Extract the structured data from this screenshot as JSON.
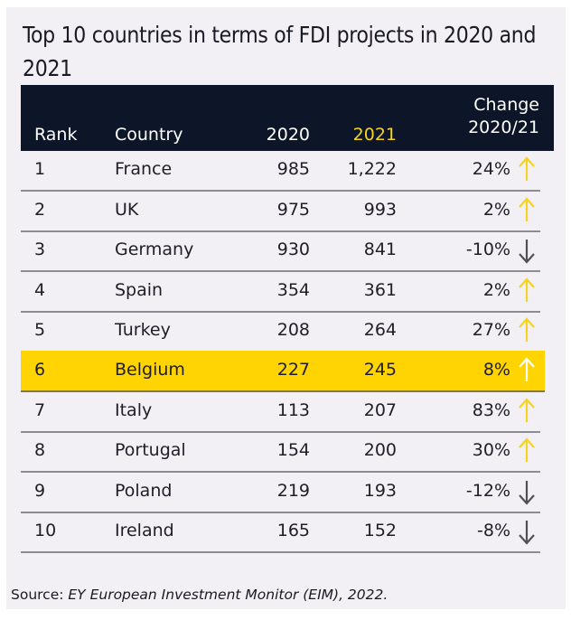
{
  "title": "Top 10 countries in terms of FDI projects in 2020 and 2021",
  "columns": {
    "rank": "Rank",
    "country": "Country",
    "y2020": "2020",
    "y2021": "2021",
    "change_line1": "Change",
    "change_line2": "2020/21"
  },
  "colors": {
    "header_bg": "#0d1628",
    "highlight": "#ffd400",
    "up_arrow": "#f5d31e",
    "down_arrow": "#505058"
  },
  "rows": [
    {
      "rank": "1",
      "country": "France",
      "y2020": "985",
      "y2021": "1,222",
      "change": "24%",
      "direction": "up"
    },
    {
      "rank": "2",
      "country": "UK",
      "y2020": "975",
      "y2021": "993",
      "change": "2%",
      "direction": "up"
    },
    {
      "rank": "3",
      "country": "Germany",
      "y2020": "930",
      "y2021": "841",
      "change": "-10%",
      "direction": "down"
    },
    {
      "rank": "4",
      "country": "Spain",
      "y2020": "354",
      "y2021": "361",
      "change": "2%",
      "direction": "up"
    },
    {
      "rank": "5",
      "country": "Turkey",
      "y2020": "208",
      "y2021": "264",
      "change": "27%",
      "direction": "up"
    },
    {
      "rank": "6",
      "country": "Belgium",
      "y2020": "227",
      "y2021": "245",
      "change": "8%",
      "direction": "up",
      "highlighted": true
    },
    {
      "rank": "7",
      "country": "Italy",
      "y2020": "113",
      "y2021": "207",
      "change": "83%",
      "direction": "up"
    },
    {
      "rank": "8",
      "country": "Portugal",
      "y2020": "154",
      "y2021": "200",
      "change": "30%",
      "direction": "up"
    },
    {
      "rank": "9",
      "country": "Poland",
      "y2020": "219",
      "y2021": "193",
      "change": "-12%",
      "direction": "down"
    },
    {
      "rank": "10",
      "country": "Ireland",
      "y2020": "165",
      "y2021": "152",
      "change": "-8%",
      "direction": "down"
    }
  ],
  "source": {
    "prefix": "Source: ",
    "text": "EY European Investment Monitor (EIM), 2022."
  }
}
